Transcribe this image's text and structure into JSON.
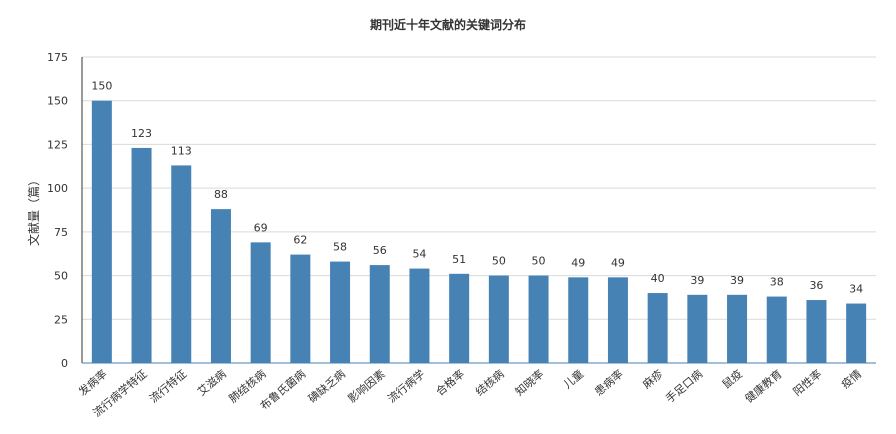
{
  "chart_data": {
    "type": "bar",
    "title": "期刊近十年文献的关键词分布",
    "xlabel": "",
    "ylabel": "文献量（篇）",
    "ylim": [
      0,
      175
    ],
    "yticks": [
      0,
      25,
      50,
      75,
      100,
      125,
      150,
      175
    ],
    "grid": true,
    "color": "#4682b4",
    "categories": [
      "发病率",
      "流行病学特征",
      "流行特征",
      "艾滋病",
      "肺结核病",
      "布鲁氏菌病",
      "碘缺乏病",
      "影响因素",
      "流行病学",
      "合格率",
      "结核病",
      "知晓率",
      "儿童",
      "患病率",
      "麻疹",
      "手足口病",
      "鼠疫",
      "健康教育",
      "阳性率",
      "疫情"
    ],
    "values": [
      150,
      123,
      113,
      88,
      69,
      62,
      58,
      56,
      54,
      51,
      50,
      50,
      49,
      49,
      40,
      39,
      39,
      38,
      36,
      34
    ]
  }
}
